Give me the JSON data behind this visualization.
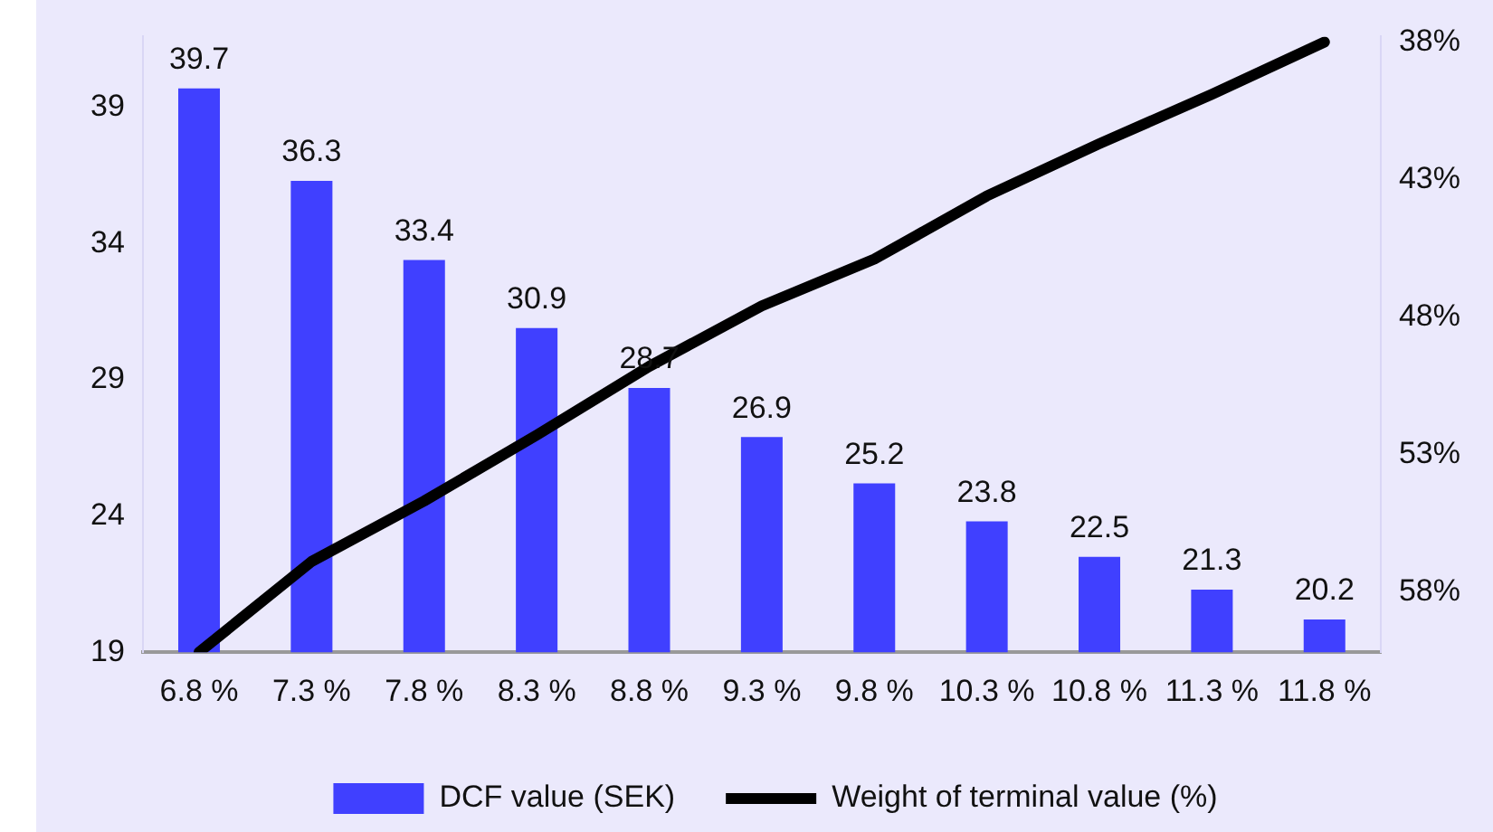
{
  "chart_data": {
    "type": "bar",
    "categories": [
      "6.8 %",
      "7.3 %",
      "7.8 %",
      "8.3 %",
      "8.8 %",
      "9.3 %",
      "9.8 %",
      "10.3 %",
      "10.8 %",
      "11.3 %",
      "11.8 %"
    ],
    "series": [
      {
        "name": "DCF value (SEK)",
        "type": "bar",
        "color": "#4040ff",
        "values": [
          39.7,
          36.3,
          33.4,
          30.9,
          28.7,
          26.9,
          25.2,
          23.8,
          22.5,
          21.3,
          20.2
        ],
        "value_labels": [
          "39.7",
          "36.3",
          "33.4",
          "30.9",
          "28.7",
          "26.9",
          "25.2",
          "23.8",
          "22.5",
          "21.3",
          "20.2"
        ]
      },
      {
        "name": "Weight of terminal value (%)",
        "type": "line",
        "axis": "y2",
        "color": "#000000",
        "values": [
          60.2,
          56.9,
          54.7,
          52.3,
          49.8,
          47.6,
          45.9,
          43.6,
          41.7,
          39.9,
          38.0
        ]
      }
    ],
    "ylim": [
      19,
      41.6
    ],
    "yticks": [
      19,
      24,
      29,
      34,
      39
    ],
    "y2lim": [
      60.2,
      37.8
    ],
    "y2ticks": [
      {
        "value": 38,
        "label": "38%"
      },
      {
        "value": 43,
        "label": "43%"
      },
      {
        "value": 48,
        "label": "48%"
      },
      {
        "value": 53,
        "label": "53%"
      },
      {
        "value": 58,
        "label": "58%"
      }
    ],
    "grid": false,
    "legend": "bottom",
    "marker": "none",
    "line_style": "solid"
  }
}
